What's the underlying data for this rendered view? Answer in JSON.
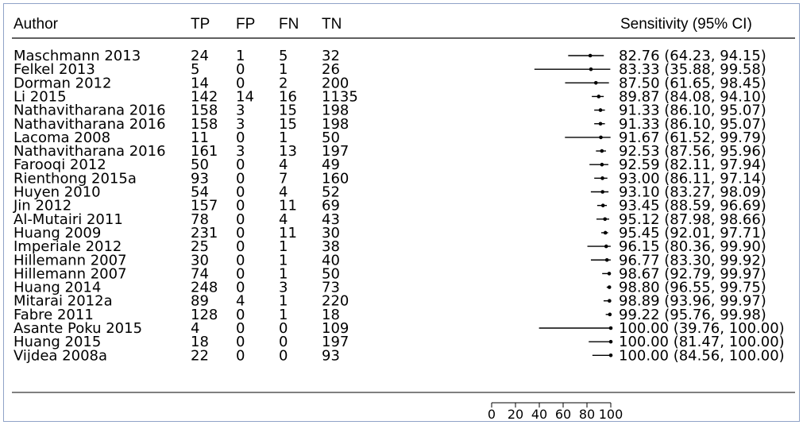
{
  "headers": {
    "author": "Author",
    "tp": "TP",
    "fp": "FP",
    "fn": "FN",
    "tn": "TN",
    "estimate": "Sensitivity (95% CI)"
  },
  "chart_data": {
    "type": "forest",
    "xlim": [
      0,
      100
    ],
    "xticks": [
      "0",
      "20",
      "40",
      "60",
      "80",
      "100"
    ],
    "grid": false,
    "studies": [
      {
        "author": "Maschmann 2013",
        "tp": "24",
        "fp": "1",
        "fn": "5",
        "tn": "32",
        "est": 82.76,
        "lo": 64.23,
        "hi": 94.15,
        "label": "82.76 (64.23, 94.15)"
      },
      {
        "author": "Felkel 2013",
        "tp": "5",
        "fp": "0",
        "fn": "1",
        "tn": "26",
        "est": 83.33,
        "lo": 35.88,
        "hi": 99.58,
        "label": "83.33 (35.88, 99.58)"
      },
      {
        "author": "Dorman 2012",
        "tp": "14",
        "fp": "0",
        "fn": "2",
        "tn": "200",
        "est": 87.5,
        "lo": 61.65,
        "hi": 98.45,
        "label": "87.50 (61.65, 98.45)"
      },
      {
        "author": "Li 2015",
        "tp": "142",
        "fp": "14",
        "fn": "16",
        "tn": "1135",
        "est": 89.87,
        "lo": 84.08,
        "hi": 94.1,
        "label": "89.87 (84.08, 94.10)"
      },
      {
        "author": "Nathavitharana 2016",
        "tp": "158",
        "fp": "3",
        "fn": "15",
        "tn": "198",
        "est": 91.33,
        "lo": 86.1,
        "hi": 95.07,
        "label": "91.33 (86.10, 95.07)"
      },
      {
        "author": "Nathavitharana 2016",
        "tp": "158",
        "fp": "3",
        "fn": "15",
        "tn": "198",
        "est": 91.33,
        "lo": 86.1,
        "hi": 95.07,
        "label": "91.33 (86.10, 95.07)"
      },
      {
        "author": "Lacoma 2008",
        "tp": "11",
        "fp": "0",
        "fn": "1",
        "tn": "50",
        "est": 91.67,
        "lo": 61.52,
        "hi": 99.79,
        "label": "91.67 (61.52, 99.79)"
      },
      {
        "author": "Nathavitharana 2016",
        "tp": "161",
        "fp": "3",
        "fn": "13",
        "tn": "197",
        "est": 92.53,
        "lo": 87.56,
        "hi": 95.96,
        "label": "92.53 (87.56, 95.96)"
      },
      {
        "author": "Farooqi 2012",
        "tp": "50",
        "fp": "0",
        "fn": "4",
        "tn": "49",
        "est": 92.59,
        "lo": 82.11,
        "hi": 97.94,
        "label": "92.59 (82.11, 97.94)"
      },
      {
        "author": "Rienthong 2015a",
        "tp": "93",
        "fp": "0",
        "fn": "7",
        "tn": "160",
        "est": 93.0,
        "lo": 86.11,
        "hi": 97.14,
        "label": "93.00 (86.11, 97.14)"
      },
      {
        "author": "Huyen 2010",
        "tp": "54",
        "fp": "0",
        "fn": "4",
        "tn": "52",
        "est": 93.1,
        "lo": 83.27,
        "hi": 98.09,
        "label": "93.10 (83.27, 98.09)"
      },
      {
        "author": "Jin 2012",
        "tp": "157",
        "fp": "0",
        "fn": "11",
        "tn": "69",
        "est": 93.45,
        "lo": 88.59,
        "hi": 96.69,
        "label": "93.45 (88.59, 96.69)"
      },
      {
        "author": "Al-Mutairi 2011",
        "tp": "78",
        "fp": "0",
        "fn": "4",
        "tn": "43",
        "est": 95.12,
        "lo": 87.98,
        "hi": 98.66,
        "label": "95.12 (87.98, 98.66)"
      },
      {
        "author": "Huang 2009",
        "tp": "231",
        "fp": "0",
        "fn": "11",
        "tn": "30",
        "est": 95.45,
        "lo": 92.01,
        "hi": 97.71,
        "label": "95.45 (92.01, 97.71)"
      },
      {
        "author": "Imperiale 2012",
        "tp": "25",
        "fp": "0",
        "fn": "1",
        "tn": "38",
        "est": 96.15,
        "lo": 80.36,
        "hi": 99.9,
        "label": "96.15 (80.36, 99.90)"
      },
      {
        "author": "Hillemann 2007",
        "tp": "30",
        "fp": "0",
        "fn": "1",
        "tn": "40",
        "est": 96.77,
        "lo": 83.3,
        "hi": 99.92,
        "label": "96.77 (83.30, 99.92)"
      },
      {
        "author": "Hillemann 2007",
        "tp": "74",
        "fp": "0",
        "fn": "1",
        "tn": "50",
        "est": 98.67,
        "lo": 92.79,
        "hi": 99.97,
        "label": "98.67 (92.79, 99.97)"
      },
      {
        "author": "Huang 2014",
        "tp": "248",
        "fp": "0",
        "fn": "3",
        "tn": "73",
        "est": 98.8,
        "lo": 96.55,
        "hi": 99.75,
        "label": "98.80 (96.55, 99.75)"
      },
      {
        "author": "Mitarai 2012a",
        "tp": "89",
        "fp": "4",
        "fn": "1",
        "tn": "220",
        "est": 98.89,
        "lo": 93.96,
        "hi": 99.97,
        "label": "98.89 (93.96, 99.97)"
      },
      {
        "author": "Fabre 2011",
        "tp": "128",
        "fp": "0",
        "fn": "1",
        "tn": "18",
        "est": 99.22,
        "lo": 95.76,
        "hi": 99.98,
        "label": "99.22 (95.76, 99.98)"
      },
      {
        "author": "Asante Poku 2015",
        "tp": "4",
        "fp": "0",
        "fn": "0",
        "tn": "109",
        "est": 100.0,
        "lo": 39.76,
        "hi": 100.0,
        "label": "100.00 (39.76, 100.00)"
      },
      {
        "author": "Huang 2015",
        "tp": "18",
        "fp": "0",
        "fn": "0",
        "tn": "197",
        "est": 100.0,
        "lo": 81.47,
        "hi": 100.0,
        "label": "100.00 (81.47, 100.00)"
      },
      {
        "author": "Vijdea 2008a",
        "tp": "22",
        "fp": "0",
        "fn": "0",
        "tn": "93",
        "est": 100.0,
        "lo": 84.56,
        "hi": 100.0,
        "label": "100.00 (84.56, 100.00)"
      }
    ]
  }
}
